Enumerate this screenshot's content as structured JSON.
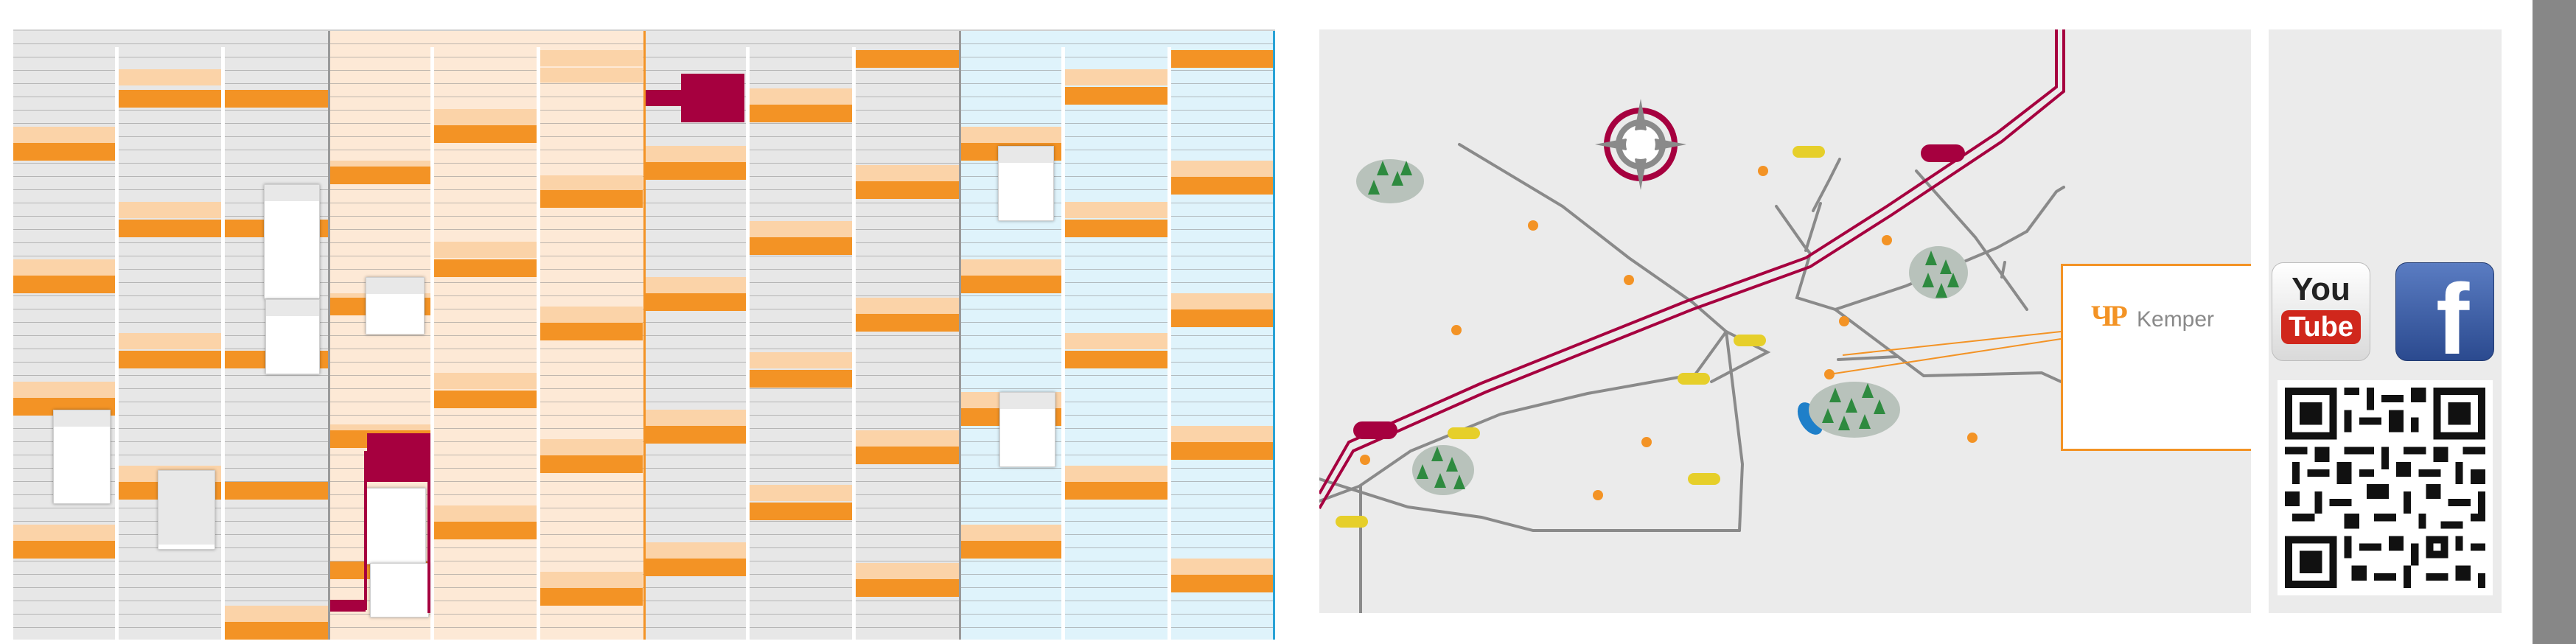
{
  "colors": {
    "orange": "#f39325",
    "orange_light": "#fbd3a8",
    "magenta": "#a6003f",
    "grey_bg": "#e7e7e7",
    "peach_bg": "#fde9d6",
    "blue_bg": "#dff3fb",
    "map_bg": "#ebebeb",
    "road": "#8a8a8a",
    "station_yellow": "#e6cf2a",
    "tree_green": "#2e8a3f",
    "lake_blue": "#1e7fc9",
    "edge_bar": "#878787"
  },
  "map": {
    "logo": {
      "mark": "ЧР",
      "name": "Kemper"
    },
    "compass_icon": "compass-rose-icon"
  },
  "social": {
    "youtube": {
      "icon": "youtube-icon",
      "label_top": "You",
      "label_bottom": "Tube"
    },
    "facebook": {
      "icon": "facebook-icon",
      "label": "f"
    },
    "qr_icon": "qr-code-icon"
  }
}
